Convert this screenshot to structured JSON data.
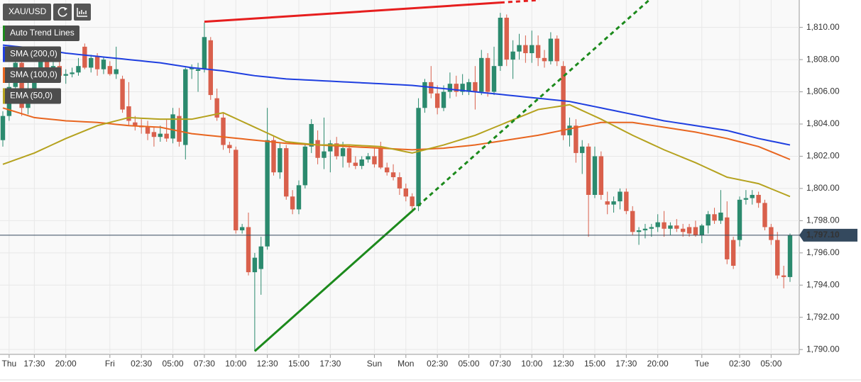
{
  "chart_data": {
    "type": "candlestick",
    "instrument": "XAU/USD",
    "up_color": "#2b8a6e",
    "down_color": "#d9604c",
    "categories": [
      null,
      "Thu",
      null,
      null,
      null,
      "17:30",
      null,
      null,
      null,
      null,
      "20:00",
      null,
      null,
      null,
      null,
      null,
      null,
      "Fri",
      null,
      null,
      null,
      null,
      "02:30",
      null,
      null,
      null,
      null,
      "05:00",
      null,
      null,
      null,
      null,
      "07:30",
      null,
      null,
      null,
      null,
      "10:00",
      null,
      null,
      null,
      null,
      "12:30",
      null,
      null,
      null,
      null,
      "15:00",
      null,
      null,
      null,
      null,
      "17:30",
      null,
      null,
      null,
      null,
      null,
      null,
      "Sun",
      null,
      null,
      null,
      null,
      "Mon",
      null,
      null,
      null,
      null,
      "02:30",
      null,
      null,
      null,
      null,
      "05:00",
      null,
      null,
      null,
      null,
      "07:30",
      null,
      null,
      null,
      null,
      "10:00",
      null,
      null,
      null,
      null,
      "12:30",
      null,
      null,
      null,
      null,
      "15:00",
      null,
      null,
      null,
      null,
      "17:30",
      null,
      null,
      null,
      null,
      "20:00",
      null,
      null,
      null,
      null,
      null,
      null,
      "Tue",
      null,
      null,
      null,
      null,
      null,
      "02:30",
      null,
      null,
      null,
      null,
      "05:00",
      null,
      null,
      null
    ],
    "open": [
      1803.0,
      1804.5,
      1806.3,
      1807.8,
      1805.0,
      1806.0,
      1807.2,
      1808.0,
      1807.4,
      1807.6,
      1807.0,
      1807.1,
      1807.2,
      1808.8,
      1807.5,
      1808.2,
      1807.4,
      1807.6,
      1807.1,
      1806.8,
      1805.1,
      1804.1,
      1803.9,
      1803.8,
      1803.5,
      1803.2,
      1803.4,
      1803.1,
      1804.5,
      1802.7,
      1807.4,
      1807.3,
      1807.4,
      1809.2,
      1805.6,
      1804.4,
      1802.7,
      1802.4,
      1797.4,
      1797.6,
      1794.8,
      1795.0,
      1796.4,
      1803.0,
      1801.0,
      1802.5,
      1799.5,
      1798.7,
      1800.2,
      1802.6,
      1803.0,
      1801.9,
      1802.3,
      1802.8,
      1802.0,
      1802.5,
      1801.6,
      1801.4,
      1801.8,
      1802.0,
      1802.5,
      1801.3,
      1801.0,
      1800.7,
      1800.0,
      1799.5,
      1798.9,
      1805.0,
      1806.6,
      1805.9,
      1805.0,
      1806.0,
      1806.5,
      1806.0,
      1806.0,
      1806.6,
      1806.0,
      1808.1,
      1806.0,
      1807.6,
      1810.6,
      1808.0,
      1808.5,
      1808.9,
      1808.4,
      1808.9,
      1808.1,
      1807.9,
      1809.3,
      1807.6,
      1803.3,
      1803.9,
      1802.2,
      1802.6,
      1799.6,
      1802.0,
      1799.2,
      1799.0,
      1799.2,
      1799.8,
      1798.6,
      1797.3,
      1797.4,
      1797.5,
      1797.6,
      1797.9,
      1797.5,
      1797.7,
      1797.5,
      1797.6,
      1797.6,
      1797.1,
      1797.7,
      1798.4,
      1798.0,
      1798.2,
      1796.8,
      1796.8,
      1799.3,
      1799.4,
      1799.6,
      1799.1,
      1797.6,
      1796.8,
      1794.6,
      1794.5
    ],
    "high": [
      1804.8,
      1806.8,
      1808.4,
      1808.0,
      1806.6,
      1807.5,
      1808.5,
      1808.4,
      1807.9,
      1807.9,
      1807.4,
      1807.5,
      1808.1,
      1809.0,
      1808.3,
      1808.4,
      1808.2,
      1807.9,
      1808.8,
      1807.0,
      1806.6,
      1804.5,
      1804.3,
      1804.2,
      1803.8,
      1803.9,
      1804.3,
      1805.0,
      1805.0,
      1807.5,
      1807.7,
      1807.8,
      1810.3,
      1809.4,
      1806.2,
      1804.7,
      1802.9,
      1802.6,
      1797.8,
      1798.5,
      1796.0,
      1797.0,
      1805.0,
      1803.3,
      1802.8,
      1802.7,
      1799.9,
      1800.5,
      1802.8,
      1804.3,
      1803.6,
      1804.4,
      1803.0,
      1803.2,
      1802.9,
      1802.7,
      1802.0,
      1802.0,
      1802.2,
      1802.5,
      1802.9,
      1801.6,
      1801.5,
      1801.0,
      1800.3,
      1799.7,
      1805.6,
      1806.8,
      1807.6,
      1806.4,
      1806.4,
      1807.2,
      1807.0,
      1807.1,
      1806.8,
      1807.6,
      1808.6,
      1808.4,
      1808.8,
      1810.9,
      1810.8,
      1809.2,
      1809.6,
      1809.5,
      1809.8,
      1809.5,
      1808.6,
      1809.7,
      1809.5,
      1807.9,
      1804.4,
      1804.3,
      1803.0,
      1802.8,
      1802.6,
      1802.3,
      1799.8,
      1799.5,
      1800.0,
      1800.0,
      1798.9,
      1797.6,
      1797.8,
      1797.8,
      1798.4,
      1798.6,
      1797.9,
      1798.1,
      1797.8,
      1797.8,
      1798.0,
      1797.8,
      1798.6,
      1798.8,
      1799.9,
      1799.2,
      1797.0,
      1799.5,
      1799.9,
      1799.9,
      1799.8,
      1799.3,
      1797.8,
      1797.3,
      1795.2,
      1797.2
    ],
    "low": [
      1802.6,
      1804.2,
      1805.6,
      1804.5,
      1804.6,
      1805.3,
      1806.9,
      1807.0,
      1806.8,
      1806.7,
      1806.5,
      1806.9,
      1807.0,
      1807.4,
      1807.2,
      1807.0,
      1807.1,
      1807.0,
      1806.8,
      1804.7,
      1803.9,
      1803.6,
      1803.4,
      1803.0,
      1802.6,
      1802.9,
      1802.9,
      1802.8,
      1802.6,
      1801.8,
      1806.8,
      1806.0,
      1807.2,
      1805.5,
      1804.2,
      1802.4,
      1802.2,
      1797.2,
      1797.2,
      1794.6,
      1789.9,
      1793.4,
      1796.2,
      1800.8,
      1800.6,
      1799.3,
      1798.4,
      1798.4,
      1800.0,
      1802.2,
      1801.5,
      1801.2,
      1801.0,
      1801.8,
      1801.3,
      1801.3,
      1801.2,
      1801.2,
      1801.6,
      1801.3,
      1801.2,
      1800.8,
      1800.5,
      1799.6,
      1799.2,
      1798.5,
      1798.6,
      1804.7,
      1805.6,
      1804.6,
      1804.8,
      1805.6,
      1805.7,
      1805.8,
      1805.8,
      1804.9,
      1805.8,
      1805.7,
      1805.8,
      1807.3,
      1807.6,
      1806.8,
      1808.0,
      1807.8,
      1807.8,
      1807.6,
      1807.5,
      1807.7,
      1807.6,
      1803.0,
      1802.6,
      1801.6,
      1800.9,
      1797.0,
      1799.4,
      1799.3,
      1798.4,
      1798.5,
      1798.7,
      1798.4,
      1797.1,
      1796.5,
      1796.9,
      1797.0,
      1797.3,
      1797.0,
      1797.1,
      1797.3,
      1797.0,
      1797.0,
      1797.0,
      1796.6,
      1797.2,
      1797.8,
      1797.8,
      1795.3,
      1795.0,
      1796.4,
      1799.0,
      1799.0,
      1798.8,
      1797.4,
      1796.5,
      1794.4,
      1793.8,
      1794.2
    ],
    "close": [
      1804.5,
      1806.3,
      1807.8,
      1805.0,
      1806.0,
      1807.2,
      1808.0,
      1807.4,
      1807.6,
      1807.0,
      1807.1,
      1807.2,
      1807.6,
      1807.5,
      1808.1,
      1807.4,
      1808.0,
      1807.1,
      1807.4,
      1804.9,
      1804.2,
      1803.9,
      1803.8,
      1803.4,
      1803.2,
      1803.4,
      1803.1,
      1804.6,
      1802.9,
      1807.4,
      1807.5,
      1807.4,
      1809.4,
      1805.8,
      1804.4,
      1802.7,
      1802.5,
      1797.4,
      1797.6,
      1794.8,
      1795.7,
      1796.4,
      1803.0,
      1801.0,
      1802.5,
      1799.5,
      1798.7,
      1800.2,
      1802.6,
      1804.0,
      1801.9,
      1802.3,
      1802.8,
      1802.0,
      1802.5,
      1801.6,
      1801.4,
      1801.8,
      1802.0,
      1801.5,
      1801.3,
      1801.0,
      1800.7,
      1800.0,
      1799.5,
      1798.9,
      1805.0,
      1806.6,
      1805.9,
      1805.0,
      1806.0,
      1806.5,
      1806.0,
      1806.5,
      1806.6,
      1806.0,
      1808.1,
      1806.0,
      1807.6,
      1810.6,
      1808.0,
      1808.5,
      1808.9,
      1808.4,
      1808.9,
      1808.1,
      1807.9,
      1809.3,
      1807.9,
      1803.3,
      1803.9,
      1802.2,
      1802.6,
      1799.6,
      1802.0,
      1799.6,
      1799.0,
      1799.2,
      1799.8,
      1798.6,
      1797.3,
      1797.4,
      1797.5,
      1797.6,
      1797.9,
      1797.5,
      1797.7,
      1797.5,
      1797.3,
      1797.2,
      1797.1,
      1797.7,
      1798.4,
      1798.0,
      1798.5,
      1795.6,
      1795.2,
      1799.3,
      1799.4,
      1799.6,
      1799.1,
      1797.6,
      1796.8,
      1794.6,
      1794.5,
      1797.1
    ],
    "series": [
      {
        "name": "SMA (200,0)",
        "color": "#1f3fe0",
        "values": [
          1808.9,
          1808.86,
          1808.82,
          1808.78,
          1808.74,
          1808.7,
          1808.64,
          1808.58,
          1808.52,
          1808.46,
          1808.4,
          1808.36,
          1808.32,
          1808.28,
          1808.24,
          1808.2,
          1808.16,
          1808.12,
          1808.08,
          1808.04,
          1808.0,
          1807.96,
          1807.92,
          1807.88,
          1807.84,
          1807.8,
          1807.74,
          1807.68,
          1807.62,
          1807.56,
          1807.5,
          1807.46,
          1807.42,
          1807.38,
          1807.34,
          1807.3,
          1807.24,
          1807.18,
          1807.12,
          1807.06,
          1807.0,
          1806.96,
          1806.92,
          1806.88,
          1806.84,
          1806.8,
          1806.78,
          1806.76,
          1806.74,
          1806.72,
          1806.7,
          1806.68,
          1806.66,
          1806.64,
          1806.62,
          1806.6,
          1806.58,
          1806.56,
          1806.54,
          1806.52,
          1806.5,
          1806.48,
          1806.46,
          1806.44,
          1806.42,
          1806.4,
          1806.36,
          1806.32,
          1806.28,
          1806.24,
          1806.2,
          1806.16,
          1806.12,
          1806.08,
          1806.04,
          1806.0,
          1805.96,
          1805.92,
          1805.88,
          1805.84,
          1805.8,
          1805.76,
          1805.72,
          1805.68,
          1805.64,
          1805.6,
          1805.56,
          1805.52,
          1805.48,
          1805.44,
          1805.4,
          1805.32,
          1805.24,
          1805.16,
          1805.08,
          1805.0,
          1804.92,
          1804.84,
          1804.76,
          1804.68,
          1804.6,
          1804.52,
          1804.44,
          1804.36,
          1804.28,
          1804.2,
          1804.14,
          1804.08,
          1804.02,
          1803.96,
          1803.9,
          1803.84,
          1803.78,
          1803.72,
          1803.66,
          1803.6,
          1803.5,
          1803.4,
          1803.3,
          1803.2,
          1803.1,
          1803.02,
          1802.94,
          1802.86,
          1802.78,
          1802.7
        ]
      },
      {
        "name": "SMA (100,0)",
        "color": "#e8651f",
        "values": [
          1805.0,
          1804.88,
          1804.76,
          1804.64,
          1804.52,
          1804.4,
          1804.36,
          1804.32,
          1804.28,
          1804.24,
          1804.2,
          1804.18,
          1804.16,
          1804.14,
          1804.12,
          1804.1,
          1804.06,
          1804.02,
          1803.98,
          1803.94,
          1803.9,
          1803.88,
          1803.86,
          1803.84,
          1803.82,
          1803.8,
          1803.72,
          1803.64,
          1803.56,
          1803.48,
          1803.4,
          1803.36,
          1803.32,
          1803.28,
          1803.24,
          1803.2,
          1803.16,
          1803.12,
          1803.08,
          1803.04,
          1803.0,
          1802.96,
          1802.92,
          1802.88,
          1802.84,
          1802.8,
          1802.78,
          1802.76,
          1802.74,
          1802.72,
          1802.7,
          1802.68,
          1802.66,
          1802.64,
          1802.62,
          1802.6,
          1802.58,
          1802.56,
          1802.54,
          1802.52,
          1802.5,
          1802.48,
          1802.46,
          1802.44,
          1802.42,
          1802.4,
          1802.42,
          1802.44,
          1802.46,
          1802.48,
          1802.5,
          1802.54,
          1802.58,
          1802.62,
          1802.66,
          1802.7,
          1802.76,
          1802.82,
          1802.88,
          1802.94,
          1803.0,
          1803.06,
          1803.12,
          1803.18,
          1803.24,
          1803.3,
          1803.38,
          1803.46,
          1803.54,
          1803.62,
          1803.7,
          1803.78,
          1803.86,
          1803.94,
          1804.02,
          1804.1,
          1804.1,
          1804.1,
          1804.1,
          1804.1,
          1804.1,
          1804.04,
          1803.98,
          1803.92,
          1803.86,
          1803.8,
          1803.74,
          1803.68,
          1803.62,
          1803.56,
          1803.5,
          1803.42,
          1803.34,
          1803.26,
          1803.18,
          1803.1,
          1803.0,
          1802.9,
          1802.8,
          1802.7,
          1802.6,
          1802.44,
          1802.28,
          1802.12,
          1801.96,
          1801.8
        ]
      },
      {
        "name": "EMA (50,0)",
        "color": "#b5a21e",
        "values": [
          1801.5,
          1801.64,
          1801.78,
          1801.92,
          1802.06,
          1802.2,
          1802.38,
          1802.56,
          1802.74,
          1802.92,
          1803.1,
          1803.26,
          1803.42,
          1803.58,
          1803.74,
          1803.9,
          1804.0,
          1804.1,
          1804.2,
          1804.3,
          1804.4,
          1804.38,
          1804.36,
          1804.34,
          1804.32,
          1804.3,
          1804.3,
          1804.3,
          1804.3,
          1804.3,
          1804.3,
          1804.38,
          1804.46,
          1804.54,
          1804.62,
          1804.7,
          1804.52,
          1804.34,
          1804.16,
          1803.98,
          1803.8,
          1803.62,
          1803.44,
          1803.26,
          1803.08,
          1802.9,
          1802.86,
          1802.82,
          1802.78,
          1802.74,
          1802.7,
          1802.7,
          1802.7,
          1802.7,
          1802.7,
          1802.7,
          1802.68,
          1802.66,
          1802.64,
          1802.62,
          1802.6,
          1802.52,
          1802.44,
          1802.36,
          1802.28,
          1802.2,
          1802.3,
          1802.4,
          1802.5,
          1802.6,
          1802.7,
          1802.82,
          1802.94,
          1803.06,
          1803.18,
          1803.3,
          1803.46,
          1803.62,
          1803.78,
          1803.94,
          1804.1,
          1804.26,
          1804.42,
          1804.58,
          1804.74,
          1804.9,
          1804.96,
          1805.02,
          1805.08,
          1805.14,
          1805.2,
          1805.02,
          1804.84,
          1804.66,
          1804.48,
          1804.3,
          1804.1,
          1803.9,
          1803.7,
          1803.5,
          1803.3,
          1803.12,
          1802.94,
          1802.76,
          1802.58,
          1802.4,
          1802.24,
          1802.08,
          1801.92,
          1801.76,
          1801.6,
          1801.42,
          1801.24,
          1801.06,
          1800.88,
          1800.7,
          1800.62,
          1800.54,
          1800.46,
          1800.38,
          1800.3,
          1800.14,
          1799.98,
          1799.82,
          1799.66,
          1799.5
        ]
      }
    ],
    "trend_lines": {
      "name": "Auto Trend Lines",
      "color": "#1c8a1c",
      "lines": [
        {
          "color": "#e61e1e",
          "x": [
            32,
            79
          ],
          "values": [
            1810.35,
            1811.54
          ]
        },
        {
          "color": "#1c8a1c",
          "x": [
            40,
            65
          ],
          "values": [
            1789.9,
            1798.6
          ]
        }
      ]
    },
    "last_price": {
      "value": 1797.1,
      "label": "1,797.10"
    },
    "ylim": [
      1789.7,
      1811.7
    ],
    "yticks": [
      {
        "value": 1790,
        "label": "1,790.00"
      },
      {
        "value": 1792,
        "label": "1,792.00"
      },
      {
        "value": 1794,
        "label": "1,794.00"
      },
      {
        "value": 1796,
        "label": "1,796.00"
      },
      {
        "value": 1798,
        "label": "1,798.00"
      },
      {
        "value": 1800,
        "label": "1,800.00"
      },
      {
        "value": 1802,
        "label": "1,802.00"
      },
      {
        "value": 1804,
        "label": "1,804.00"
      },
      {
        "value": 1806,
        "label": "1,806.00"
      },
      {
        "value": 1808,
        "label": "1,808.00"
      },
      {
        "value": 1810,
        "label": "1,810.00"
      }
    ],
    "grid": true
  }
}
